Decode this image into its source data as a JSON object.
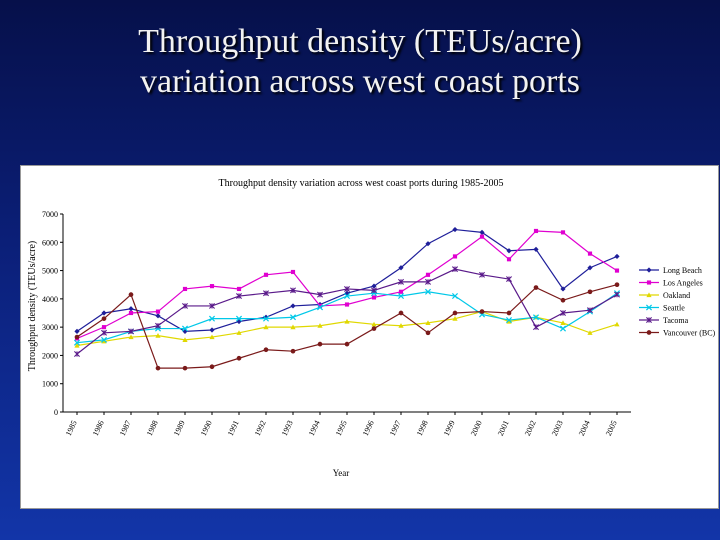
{
  "slide": {
    "title_line1": "Throughput density (TEUs/acre)",
    "title_line2": "variation across west coast ports"
  },
  "chart_data": {
    "type": "line",
    "title": "Throughput density variation across west coast ports during 1985-2005",
    "xlabel": "Year",
    "ylabel": "Throughput density (TEUs/acre)",
    "ylim": [
      0,
      7000
    ],
    "yticks": [
      0,
      1000,
      2000,
      3000,
      4000,
      5000,
      6000,
      7000
    ],
    "grid": false,
    "legend_position": "right",
    "categories": [
      "1985",
      "1986",
      "1987",
      "1988",
      "1989",
      "1990",
      "1991",
      "1992",
      "1993",
      "1994",
      "1995",
      "1996",
      "1997",
      "1998",
      "1999",
      "2000",
      "2001",
      "2002",
      "2003",
      "2004",
      "2005"
    ],
    "series": [
      {
        "name": "Long Beach",
        "color": "#1f1f9a",
        "marker": "diamond",
        "values": [
          2850,
          3500,
          3650,
          3400,
          2850,
          2900,
          3200,
          3350,
          3750,
          3800,
          4200,
          4450,
          5100,
          5950,
          6450,
          6350,
          5700,
          5750,
          4350,
          5100,
          5500
        ]
      },
      {
        "name": "Los Angeles",
        "color": "#e000d0",
        "marker": "square",
        "values": [
          2600,
          3000,
          3500,
          3550,
          4350,
          4450,
          4350,
          4850,
          4950,
          3750,
          3800,
          4050,
          4250,
          4850,
          5500,
          6200,
          5400,
          6400,
          6350,
          5600,
          5000
        ]
      },
      {
        "name": "Oakland",
        "color": "#e0d800",
        "marker": "triangle",
        "values": [
          2350,
          2500,
          2650,
          2700,
          2550,
          2650,
          2800,
          3000,
          3000,
          3050,
          3200,
          3100,
          3050,
          3150,
          3300,
          3550,
          3200,
          3350,
          3150,
          2800,
          3100
        ]
      },
      {
        "name": "Seattle",
        "color": "#00c8e8",
        "marker": "x",
        "values": [
          2450,
          2550,
          2850,
          2950,
          2950,
          3300,
          3300,
          3300,
          3350,
          3700,
          4100,
          4200,
          4100,
          4250,
          4100,
          3450,
          3250,
          3350,
          2950,
          3550,
          4200
        ]
      },
      {
        "name": "Tacoma",
        "color": "#5a1a8a",
        "marker": "star",
        "values": [
          2050,
          2800,
          2850,
          3050,
          3750,
          3750,
          4100,
          4200,
          4300,
          4150,
          4350,
          4300,
          4600,
          4600,
          5050,
          4850,
          4700,
          3000,
          3500,
          3600,
          4150
        ]
      },
      {
        "name": "Vancouver (BC)",
        "color": "#7a1a1a",
        "marker": "circle",
        "values": [
          2650,
          3300,
          4150,
          1550,
          1550,
          1600,
          1900,
          2200,
          2150,
          2400,
          2400,
          2950,
          3500,
          2800,
          3500,
          3550,
          3500,
          4400,
          3950,
          4250,
          4500
        ]
      }
    ]
  }
}
